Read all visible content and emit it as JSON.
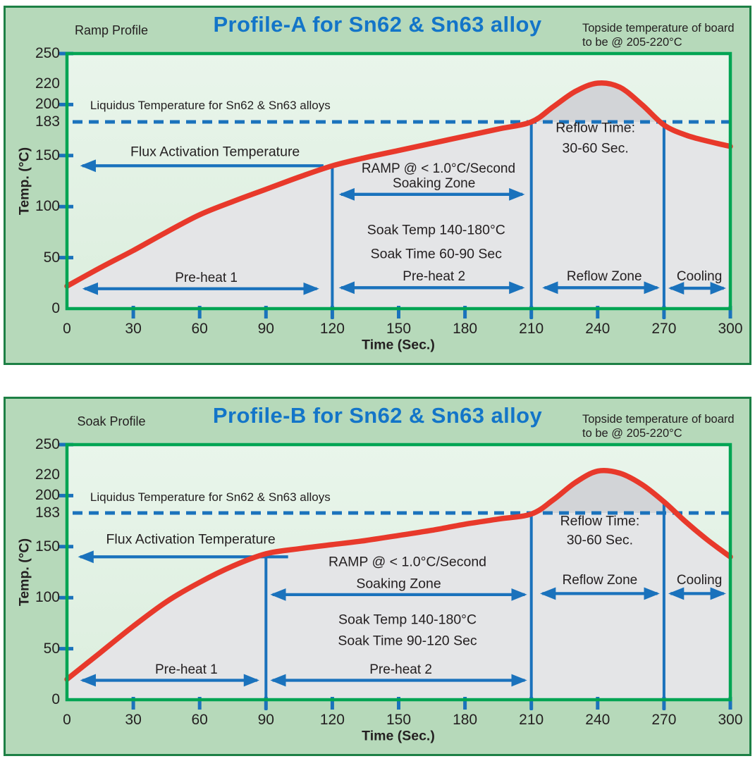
{
  "colors": {
    "page_bg": "#ffffff",
    "panel_bg": "#b6d9ba",
    "panel_border": "#1d8045",
    "plot_border": "#00a453",
    "plot_bg_top": "#e9f5eb",
    "plot_bg_bottom": "#dceede",
    "fill_gray": "#e4e5e7",
    "fill_dark_gray": "#d2d4d7",
    "curve_red": "#e8392b",
    "blue": "#1a72bc",
    "title_blue": "#1375c8",
    "text_dark": "#242021"
  },
  "chart_data": [
    {
      "type": "line",
      "panel": "A",
      "corner_label": "Ramp Profile",
      "title": "Profile-A for Sn62 & Sn63 alloy",
      "note_line1": "Topside temperature of board",
      "note_line2": "to be @ 205-220°C",
      "xlabel": "Time (Sec.)",
      "ylabel": "Temp. (°C)",
      "xlim": [
        0,
        300
      ],
      "ylim": [
        0,
        250
      ],
      "x_ticks": [
        0,
        30,
        60,
        90,
        120,
        150,
        180,
        210,
        240,
        270,
        300
      ],
      "y_tick_labels": [
        250,
        220,
        200,
        183,
        150,
        100,
        50,
        0
      ],
      "y_ticks_marked": [
        50,
        100,
        150,
        200,
        250
      ],
      "liquidus": {
        "temp": 183,
        "label_annotation_index": 0
      },
      "zone_boundaries": [
        120,
        210,
        270
      ],
      "series": [
        {
          "name": "board temperature",
          "color": "#e8392b",
          "x": [
            0,
            15,
            30,
            45,
            60,
            75,
            90,
            105,
            120,
            135,
            150,
            165,
            180,
            195,
            210,
            220,
            230,
            240,
            250,
            260,
            270,
            280,
            290,
            300
          ],
          "y": [
            22,
            40,
            57,
            75,
            92,
            105,
            117,
            129,
            140,
            148,
            155,
            162,
            169,
            176,
            183,
            198,
            213,
            221,
            217,
            200,
            180,
            170,
            164,
            159
          ]
        }
      ],
      "annotations": [
        {
          "name": "liquidus-label",
          "text": "Liquidus Temperature for Sn62 & Sn63 alloys",
          "t": 10.5,
          "temp": 199,
          "size": 17,
          "anchor": "left"
        },
        {
          "name": "flux-activation-label",
          "text": "Flux Activation Temperature",
          "t": 67,
          "temp": 153,
          "size": 19.5
        },
        {
          "name": "ramp-rate-label",
          "text": "RAMP @ < 1.0°C/Second",
          "t": 168,
          "temp": 137,
          "size": 19
        },
        {
          "name": "soaking-zone-label",
          "text": "Soaking Zone",
          "t": 166,
          "temp": 122,
          "size": 19
        },
        {
          "name": "soak-temp-label",
          "text": "Soak Temp 140-180°C",
          "t": 167,
          "temp": 77,
          "size": 19.5
        },
        {
          "name": "soak-time-label",
          "text": "Soak Time 60-90 Sec",
          "t": 167,
          "temp": 53,
          "size": 19.5
        },
        {
          "name": "reflow-time-label-line1",
          "text": "Reflow Time:",
          "t": 239,
          "temp": 177,
          "size": 19.5
        },
        {
          "name": "reflow-time-label-line2",
          "text": "30-60 Sec.",
          "t": 239,
          "temp": 157,
          "size": 19.5
        },
        {
          "name": "preheat1-label",
          "text": "Pre-heat 1",
          "t": 63,
          "temp": 30,
          "size": 19
        },
        {
          "name": "preheat2-label",
          "text": "Pre-heat 2",
          "t": 166,
          "temp": 31,
          "size": 19
        },
        {
          "name": "reflow-zone-label",
          "text": "Reflow Zone",
          "t": 243,
          "temp": 31,
          "size": 19
        },
        {
          "name": "cooling-label",
          "text": "Cooling",
          "t": 286,
          "temp": 31,
          "size": 19
        }
      ],
      "arrows": [
        {
          "name": "flux-activation-arrow",
          "temp": 140,
          "from": 116,
          "to": 7,
          "double": false
        },
        {
          "name": "soaking-zone-arrow",
          "temp": 112,
          "from": 124,
          "to": 206,
          "double": true
        },
        {
          "name": "preheat1-arrow",
          "temp": 19.5,
          "from": 8,
          "to": 113,
          "double": true
        },
        {
          "name": "preheat2-arrow",
          "temp": 20.5,
          "from": 124,
          "to": 206,
          "double": true
        },
        {
          "name": "reflow-zone-arrow",
          "temp": 20.5,
          "from": 216,
          "to": 267,
          "double": true
        },
        {
          "name": "cooling-arrow",
          "temp": 20,
          "from": 273,
          "to": 297,
          "double": true
        }
      ]
    },
    {
      "type": "line",
      "panel": "B",
      "corner_label": "Soak Profile",
      "title": "Profile-B for Sn62 & Sn63 alloy",
      "note_line1": "Topside temperature of board",
      "note_line2": "to be @ 205-220°C",
      "xlabel": "Time (Sec.)",
      "ylabel": "Temp. (°C)",
      "xlim": [
        0,
        300
      ],
      "ylim": [
        0,
        250
      ],
      "x_ticks": [
        0,
        30,
        60,
        90,
        120,
        150,
        180,
        210,
        240,
        270,
        300
      ],
      "y_tick_labels": [
        250,
        220,
        200,
        183,
        150,
        100,
        50,
        0
      ],
      "y_ticks_marked": [
        50,
        100,
        150,
        200,
        250
      ],
      "liquidus": {
        "temp": 183,
        "label_annotation_index": 0
      },
      "zone_boundaries": [
        90,
        210,
        270
      ],
      "series": [
        {
          "name": "board temperature",
          "color": "#e8392b",
          "x": [
            0,
            15,
            30,
            45,
            60,
            75,
            90,
            105,
            120,
            135,
            150,
            165,
            180,
            195,
            210,
            220,
            230,
            240,
            250,
            260,
            270,
            280,
            290,
            300
          ],
          "y": [
            20,
            46,
            72,
            96,
            115,
            131,
            143,
            148,
            152,
            156,
            161,
            166,
            172,
            177,
            182,
            196,
            213,
            224,
            222,
            211,
            194,
            174,
            156,
            140
          ]
        }
      ],
      "annotations": [
        {
          "name": "liquidus-label",
          "text": "Liquidus Temperature for Sn62 & Sn63 alloys",
          "t": 10.5,
          "temp": 198,
          "size": 17,
          "anchor": "left"
        },
        {
          "name": "flux-activation-label",
          "text": "Flux Activation Temperature",
          "t": 56,
          "temp": 157,
          "size": 19.5
        },
        {
          "name": "ramp-rate-label",
          "text": "RAMP @ < 1.0°C/Second",
          "t": 154,
          "temp": 135,
          "size": 19.5
        },
        {
          "name": "soaking-zone-label",
          "text": "Soaking Zone",
          "t": 150,
          "temp": 113,
          "size": 19.5
        },
        {
          "name": "soak-temp-label",
          "text": "Soak Temp 140-180°C",
          "t": 154,
          "temp": 78,
          "size": 19.5
        },
        {
          "name": "soak-time-label",
          "text": "Soak Time 90-120 Sec",
          "t": 154,
          "temp": 57,
          "size": 19.5
        },
        {
          "name": "reflow-time-label-line1",
          "text": "Reflow Time:",
          "t": 241,
          "temp": 175,
          "size": 19.5
        },
        {
          "name": "reflow-time-label-line2",
          "text": "30-60 Sec.",
          "t": 241,
          "temp": 156,
          "size": 19.5
        },
        {
          "name": "reflow-zone-label",
          "text": "Reflow Zone",
          "t": 241,
          "temp": 117,
          "size": 19
        },
        {
          "name": "cooling-label",
          "text": "Cooling",
          "t": 286,
          "temp": 117,
          "size": 19
        },
        {
          "name": "preheat1-label",
          "text": "Pre-heat 1",
          "t": 54,
          "temp": 29,
          "size": 19
        },
        {
          "name": "preheat2-label",
          "text": "Pre-heat 2",
          "t": 151,
          "temp": 29,
          "size": 19
        }
      ],
      "arrows": [
        {
          "name": "flux-activation-arrow",
          "temp": 140,
          "from": 100,
          "to": 6,
          "double": false
        },
        {
          "name": "soaking-zone-arrow",
          "temp": 103,
          "from": 93,
          "to": 207,
          "double": true
        },
        {
          "name": "reflow-zone-arrow",
          "temp": 104,
          "from": 215,
          "to": 267,
          "double": true
        },
        {
          "name": "cooling-arrow",
          "temp": 104,
          "from": 273,
          "to": 297,
          "double": true
        },
        {
          "name": "preheat1-arrow",
          "temp": 19,
          "from": 7,
          "to": 86,
          "double": true
        },
        {
          "name": "preheat2-arrow",
          "temp": 19,
          "from": 93,
          "to": 207,
          "double": true
        }
      ]
    }
  ]
}
